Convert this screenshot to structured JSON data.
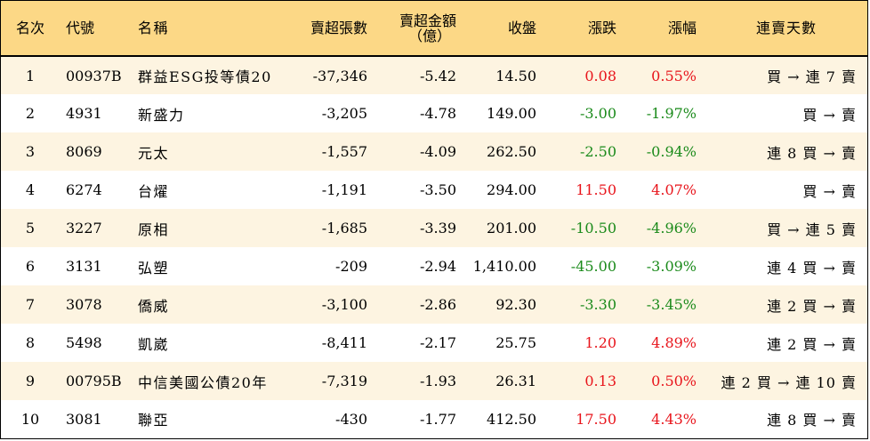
{
  "headers": {
    "rank": "名次",
    "code": "代號",
    "name": "名稱",
    "net_sell_shares": "賣超張數",
    "net_sell_amount_line1": "賣超金額",
    "net_sell_amount_line2": "（億）",
    "close": "收盤",
    "change": "漲跌",
    "pct_change": "漲幅",
    "streak": "連賣天數"
  },
  "colors": {
    "header_bg": "#fcd886",
    "odd_row_bg": "#fdf4e1",
    "up": "#e8141b",
    "down": "#1a8a1a"
  },
  "rows": [
    {
      "rank": "1",
      "code": "00937B",
      "name": "群益ESG投等債20",
      "shares": "-37,346",
      "amount": "-5.42",
      "close": "14.50",
      "change": "0.08",
      "pct": "0.55%",
      "dir": "up",
      "streak": "買 → 連 7 賣"
    },
    {
      "rank": "2",
      "code": "4931",
      "name": "新盛力",
      "shares": "-3,205",
      "amount": "-4.78",
      "close": "149.00",
      "change": "-3.00",
      "pct": "-1.97%",
      "dir": "down",
      "streak": "買 → 賣"
    },
    {
      "rank": "3",
      "code": "8069",
      "name": "元太",
      "shares": "-1,557",
      "amount": "-4.09",
      "close": "262.50",
      "change": "-2.50",
      "pct": "-0.94%",
      "dir": "down",
      "streak": "連 8 買 → 賣"
    },
    {
      "rank": "4",
      "code": "6274",
      "name": "台燿",
      "shares": "-1,191",
      "amount": "-3.50",
      "close": "294.00",
      "change": "11.50",
      "pct": "4.07%",
      "dir": "up",
      "streak": "買 → 賣"
    },
    {
      "rank": "5",
      "code": "3227",
      "name": "原相",
      "shares": "-1,685",
      "amount": "-3.39",
      "close": "201.00",
      "change": "-10.50",
      "pct": "-4.96%",
      "dir": "down",
      "streak": "買 → 連 5 賣"
    },
    {
      "rank": "6",
      "code": "3131",
      "name": "弘塑",
      "shares": "-209",
      "amount": "-2.94",
      "close": "1,410.00",
      "change": "-45.00",
      "pct": "-3.09%",
      "dir": "down",
      "streak": "連 4 買 → 賣"
    },
    {
      "rank": "7",
      "code": "3078",
      "name": "僑威",
      "shares": "-3,100",
      "amount": "-2.86",
      "close": "92.30",
      "change": "-3.30",
      "pct": "-3.45%",
      "dir": "down",
      "streak": "連 2 買 → 賣"
    },
    {
      "rank": "8",
      "code": "5498",
      "name": "凱崴",
      "shares": "-8,411",
      "amount": "-2.17",
      "close": "25.75",
      "change": "1.20",
      "pct": "4.89%",
      "dir": "up",
      "streak": "連 2 買 → 賣"
    },
    {
      "rank": "9",
      "code": "00795B",
      "name": "中信美國公債20年",
      "shares": "-7,319",
      "amount": "-1.93",
      "close": "26.31",
      "change": "0.13",
      "pct": "0.50%",
      "dir": "up",
      "streak": "連 2 買 → 連 10 賣"
    },
    {
      "rank": "10",
      "code": "3081",
      "name": "聯亞",
      "shares": "-430",
      "amount": "-1.77",
      "close": "412.50",
      "change": "17.50",
      "pct": "4.43%",
      "dir": "up",
      "streak": "連 8 買 → 賣"
    }
  ]
}
